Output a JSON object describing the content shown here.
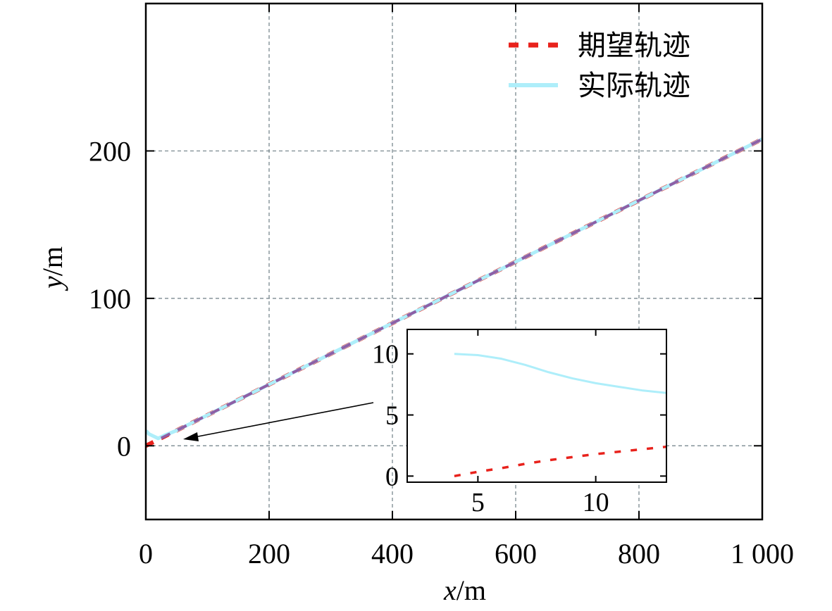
{
  "chart_data": {
    "main": {
      "type": "line",
      "xlabel_var": "x",
      "xlabel_unit": "/m",
      "ylabel_var": "y",
      "ylabel_unit": "/m",
      "xlim": [
        0,
        1000
      ],
      "ylim": [
        -50,
        300
      ],
      "xticks": [
        0,
        200,
        400,
        600,
        800,
        1000
      ],
      "xtick_labels": [
        "0",
        "200",
        "400",
        "600",
        "800",
        "1 000"
      ],
      "yticks": [
        0,
        100,
        200
      ],
      "ytick_labels": [
        "0",
        "100",
        "200"
      ],
      "grid": true,
      "legend_position": "top-right",
      "series": [
        {
          "name": "期望轨迹",
          "style": "dashed",
          "color": "#e8221c",
          "x": [
            0,
            1000
          ],
          "y": [
            0,
            208
          ]
        },
        {
          "name": "实际轨迹",
          "style": "solid",
          "color": "#aeeefa",
          "x": [
            0,
            2,
            5,
            10,
            20,
            30,
            50,
            100,
            200,
            400,
            600,
            800,
            1000
          ],
          "y": [
            10,
            9.5,
            8,
            7,
            5,
            7,
            10.4,
            20.8,
            41.6,
            83.2,
            124.8,
            166.4,
            208
          ]
        }
      ],
      "overlay": {
        "name": "overlap",
        "color": "#8e5fa6",
        "style": "dashed",
        "x": [
          25,
          1000
        ],
        "y": [
          5.2,
          208
        ]
      }
    },
    "inset": {
      "type": "line",
      "xlim": [
        2,
        13
      ],
      "ylim": [
        -0.5,
        12
      ],
      "xticks": [
        5,
        10
      ],
      "xtick_labels": [
        "5",
        "10"
      ],
      "yticks": [
        0,
        5,
        10
      ],
      "ytick_labels": [
        "0",
        "5",
        "10"
      ],
      "series": [
        {
          "name": "期望轨迹",
          "style": "dashed",
          "color": "#e8221c",
          "x": [
            4,
            5,
            6,
            7,
            8,
            9,
            10,
            11,
            12,
            13
          ],
          "y": [
            0,
            0.35,
            0.65,
            1.0,
            1.3,
            1.55,
            1.8,
            2.0,
            2.2,
            2.4
          ]
        },
        {
          "name": "实际轨迹",
          "style": "solid",
          "color": "#aeeefa",
          "x": [
            4,
            5,
            6,
            7,
            8,
            9,
            10,
            11,
            12,
            13
          ],
          "y": [
            10,
            9.9,
            9.6,
            9.1,
            8.5,
            8.0,
            7.6,
            7.3,
            7.0,
            6.8
          ]
        }
      ]
    }
  }
}
